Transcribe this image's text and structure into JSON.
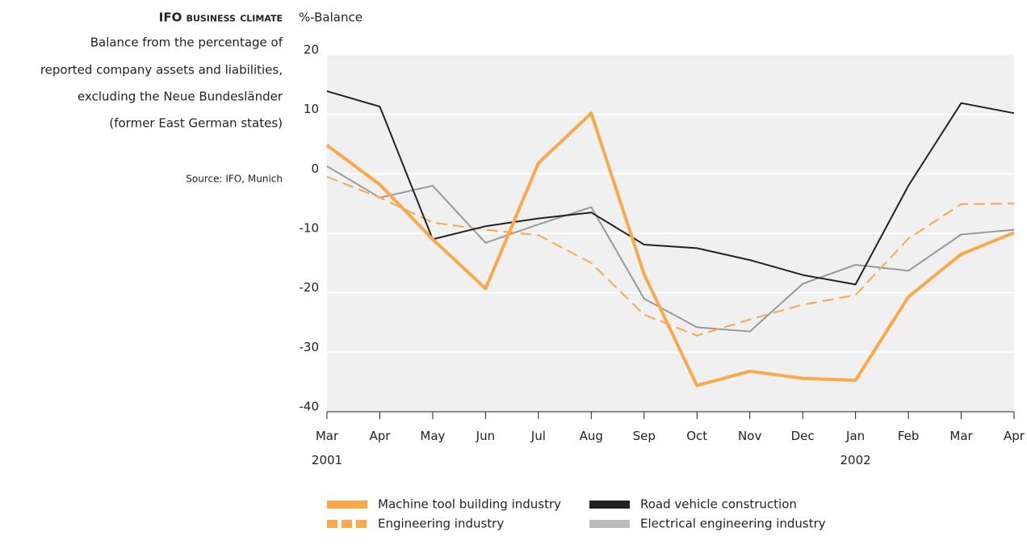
{
  "chart_data": {
    "type": "line",
    "title": "IFO business climate",
    "subtitle": [
      "Balance from the percentage of",
      "reported company assets and liabilities,",
      "excluding the Neue Bundesländer",
      "(former East German states)"
    ],
    "source": "Source: IFO, Munich",
    "y_label": "%-Balance",
    "categories": [
      "Mar 2001",
      "Apr",
      "May",
      "Jun",
      "Jul",
      "Aug",
      "Sep",
      "Oct",
      "Nov",
      "Dec",
      "Jan 2002",
      "Feb",
      "Mar",
      "Apr"
    ],
    "ylim": [
      -40,
      20
    ],
    "yticks": [
      20,
      10,
      0,
      -10,
      -20,
      -30,
      -40
    ],
    "grid": true,
    "series": [
      {
        "name": "Machine tool building industry",
        "color": "#f9a94b",
        "width": 4,
        "dashed": false,
        "values": [
          4.8,
          -1.8,
          -11,
          -19.3,
          1.8,
          10.2,
          -16.9,
          -35.6,
          -33.2,
          -34.4,
          -34.7,
          -20.7,
          -13.5,
          -9.9
        ]
      },
      {
        "name": "Engineering industry",
        "color": "#f9a94b",
        "width": 2,
        "dashed": true,
        "values": [
          -0.5,
          -4,
          -8.2,
          -9.4,
          -10.3,
          -15,
          -23.7,
          -27.2,
          -24.5,
          -22,
          -20.4,
          -10.9,
          -5.1,
          -5
        ]
      },
      {
        "name": "Road vehicle construction",
        "color": "#222222",
        "width": 2,
        "dashed": false,
        "values": [
          13.9,
          11.3,
          -11,
          -8.8,
          -7.5,
          -6.5,
          -11.9,
          -12.5,
          -14.5,
          -17,
          -18.6,
          -2,
          11.9,
          10.2
        ]
      },
      {
        "name": "Electrical engineering industry",
        "color": "#999999",
        "width": 2,
        "dashed": false,
        "values": [
          1.3,
          -4,
          -2,
          -11.6,
          -8.5,
          -5.6,
          -21,
          -25.8,
          -26.5,
          -18.5,
          -15.3,
          -16.3,
          -10.2,
          -9.4
        ]
      }
    ]
  }
}
